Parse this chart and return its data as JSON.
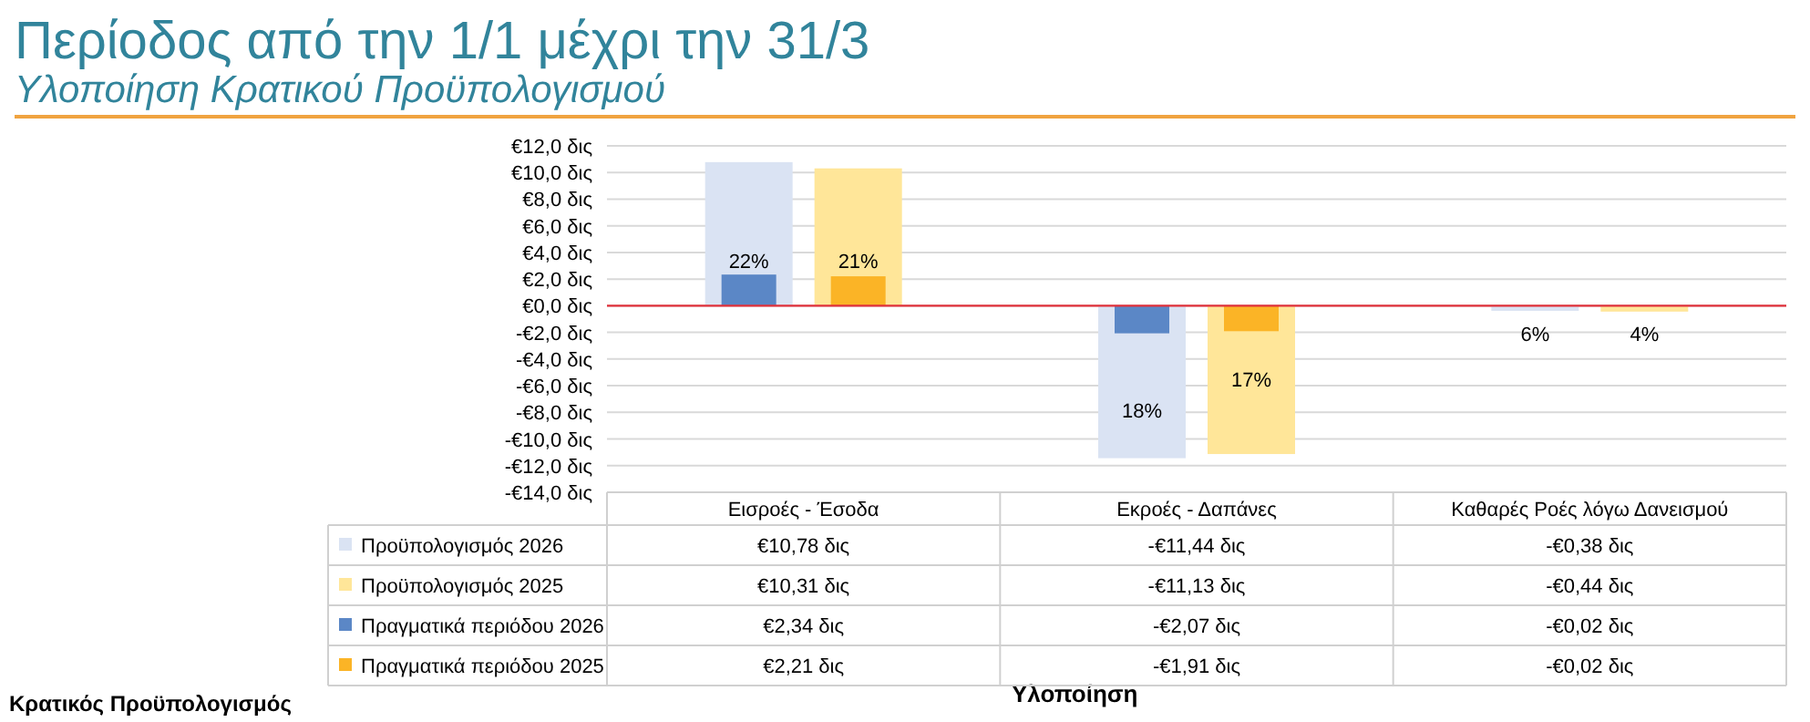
{
  "chart_data": {
    "type": "bar",
    "title": "Περίοδος από την 1/1 μέχρι την 31/3",
    "subtitle": "Υλοποίηση Κρατικού Προϋπολογισμού",
    "categories": [
      "Εισροές - Έσοδα",
      "Εκροές - Δαπάνες",
      "Καθαρές Ροές λόγω Δανεισμού"
    ],
    "series": [
      {
        "name": "Προϋπολογισμός 2026",
        "color": "#dae3f3",
        "values": [
          10.78,
          -11.44,
          -0.38
        ],
        "value_labels": [
          "€10,78 δις",
          "-€11,44 δις",
          "-€0,38 δις"
        ]
      },
      {
        "name": "Προϋπολογισμός 2025",
        "color": "#ffe699",
        "values": [
          10.31,
          -11.13,
          -0.44
        ],
        "value_labels": [
          "€10,31 δις",
          "-€11,13 δις",
          "-€0,44 δις"
        ]
      },
      {
        "name": "Πραγματικά περιόδου 2026",
        "color": "#5b87c6",
        "values": [
          2.34,
          -2.07,
          -0.02
        ],
        "value_labels": [
          "€2,34 δις",
          "-€2,07 δις",
          "-€0,02 δις"
        ]
      },
      {
        "name": "Πραγματικά περιόδου 2025",
        "color": "#fbb426",
        "values": [
          2.21,
          -1.91,
          -0.02
        ],
        "value_labels": [
          "€2,21 δις",
          "-€1,91 δις",
          "-€0,02 δις"
        ]
      }
    ],
    "ylim": [
      -14,
      12
    ],
    "yticks": [
      {
        "value": 12,
        "label": "€12,0 δις"
      },
      {
        "value": 10,
        "label": "€10,0 δις"
      },
      {
        "value": 8,
        "label": "€8,0 δις"
      },
      {
        "value": 6,
        "label": "€6,0 δις"
      },
      {
        "value": 4,
        "label": "€4,0 δις"
      },
      {
        "value": 2,
        "label": "€2,0 δις"
      },
      {
        "value": 0,
        "label": "€0,0 δις"
      },
      {
        "value": -2,
        "label": "-€2,0 δις"
      },
      {
        "value": -4,
        "label": "-€4,0 δις"
      },
      {
        "value": -6,
        "label": "-€6,0 δις"
      },
      {
        "value": -8,
        "label": "-€8,0 δις"
      },
      {
        "value": -10,
        "label": "-€10,0 δις"
      },
      {
        "value": -12,
        "label": "-€12,0 δις"
      },
      {
        "value": -14,
        "label": "-€14,0 δις"
      }
    ],
    "grid": "y",
    "legend": "bottom",
    "ref_lines": [
      {
        "axis": "y",
        "value": 0,
        "color": "#e0303a"
      }
    ],
    "annotations": [
      "22%",
      "21%",
      "18%",
      "17%",
      "6%",
      "4%",
      "Κρατικός Προϋπολογισμός",
      "Υλοποίηση"
    ]
  }
}
